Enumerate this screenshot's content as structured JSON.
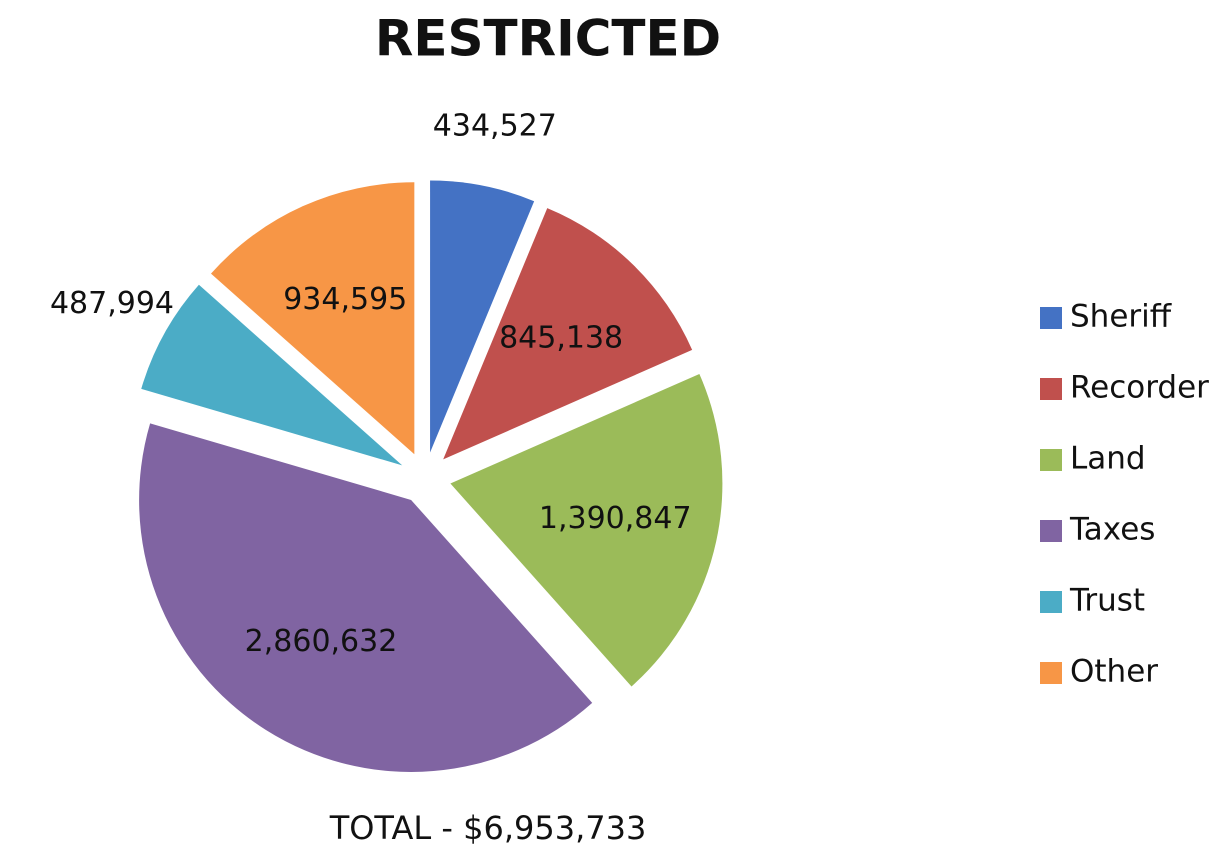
{
  "chart_data": {
    "type": "pie",
    "title": "RESTRICTED",
    "categories": [
      "Sheriff",
      "Recorder",
      "Land",
      "Taxes",
      "Trust",
      "Other"
    ],
    "values": [
      434527,
      845138,
      1390847,
      2860632,
      487994,
      934595
    ],
    "value_labels": [
      "434,527",
      "845,138",
      "1,390,847",
      "2,860,632",
      "487,994",
      "934,595"
    ],
    "colors": [
      "#4472c4",
      "#c0504d",
      "#9bbb59",
      "#8064a2",
      "#4bacc6",
      "#f79646"
    ],
    "annotation": "TOTAL - $6,953,733",
    "legend": "right"
  }
}
